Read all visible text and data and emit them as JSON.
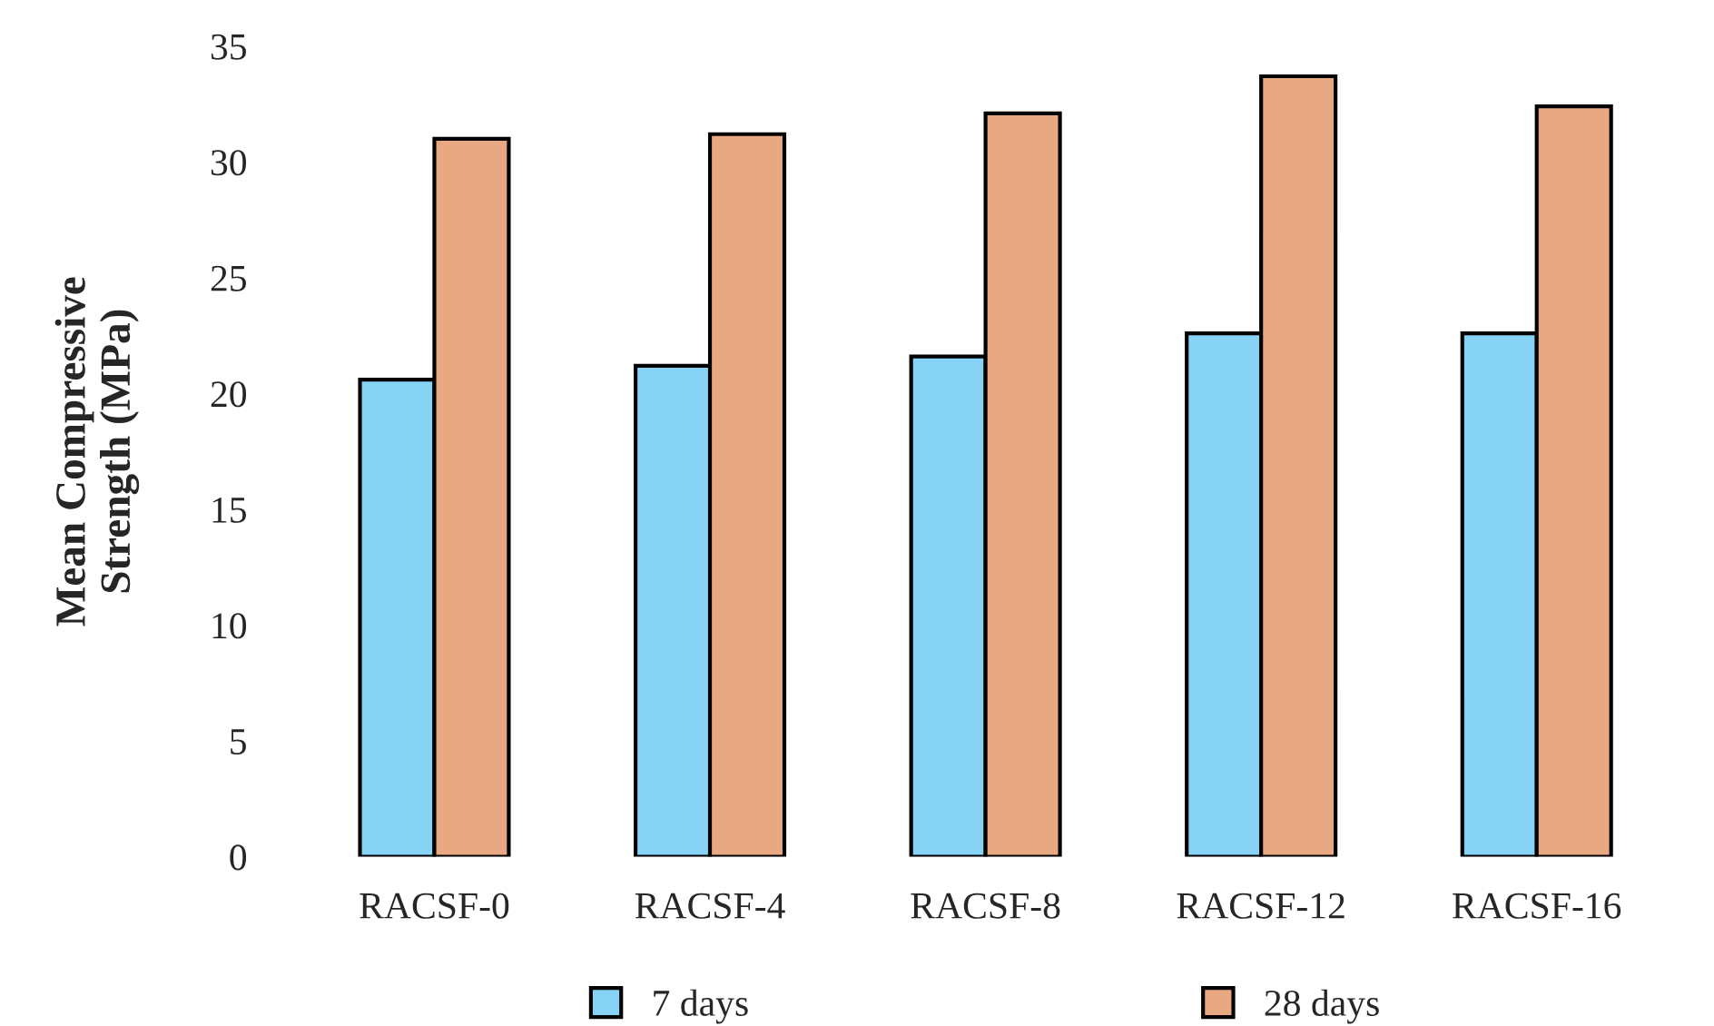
{
  "chart_data": {
    "type": "bar",
    "ylabel": "Mean Compressive\nStrength (MPa)",
    "categories": [
      "RACSF-0",
      "RACSF-4",
      "RACSF-8",
      "RACSF-12",
      "RACSF-16"
    ],
    "series": [
      {
        "name": "7 days",
        "color": "#87d3f5",
        "values": [
          20.6,
          21.2,
          21.6,
          22.6,
          22.6
        ]
      },
      {
        "name": "28 days",
        "color": "#e8a982",
        "values": [
          31.0,
          31.2,
          32.1,
          33.7,
          32.4
        ]
      }
    ],
    "ylim": [
      0,
      35
    ],
    "yticks": [
      0,
      5,
      10,
      15,
      20,
      25,
      30,
      35
    ],
    "grid": false,
    "legend": "bottom"
  }
}
